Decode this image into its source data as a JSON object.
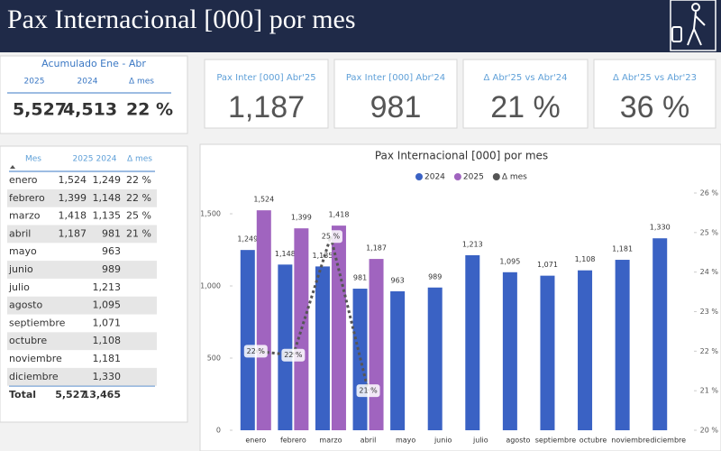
{
  "header": {
    "title": "Pax Internacional [000] por mes"
  },
  "summary": {
    "title": "Acumulado Ene - Abr",
    "columns": [
      "2025",
      "2024",
      "Δ mes"
    ],
    "values": [
      "5,527",
      "4,513",
      "22 %"
    ]
  },
  "kpis": [
    {
      "label": "Pax Inter [000] Abr'25",
      "value": "1,187"
    },
    {
      "label": "Pax Inter [000] Abr'24",
      "value": "981"
    },
    {
      "label": "Δ Abr'25 vs Abr'24",
      "value": "21 %"
    },
    {
      "label": "Δ Abr'25 vs Abr'23",
      "value": "36 %"
    }
  ],
  "table": {
    "columns": [
      "Mes",
      "2025",
      "2024",
      "Δ mes"
    ],
    "rows": [
      [
        "enero",
        "1,524",
        "1,249",
        "22 %"
      ],
      [
        "febrero",
        "1,399",
        "1,148",
        "22 %"
      ],
      [
        "marzo",
        "1,418",
        "1,135",
        "25 %"
      ],
      [
        "abril",
        "1,187",
        "981",
        "21 %"
      ],
      [
        "mayo",
        null,
        "963",
        null
      ],
      [
        "junio",
        null,
        "989",
        null
      ],
      [
        "julio",
        null,
        "1,213",
        null
      ],
      [
        "agosto",
        null,
        "1,095",
        null
      ],
      [
        "septiembre",
        null,
        "1,071",
        null
      ],
      [
        "octubre",
        null,
        "1,108",
        null
      ],
      [
        "noviembre",
        null,
        "1,181",
        null
      ],
      [
        "diciembre",
        null,
        "1,330",
        null
      ]
    ],
    "total": [
      "Total",
      "5,527",
      "13,465",
      null
    ]
  },
  "chart_data": {
    "type": "bar",
    "title": "Pax Internacional [000] por mes",
    "categories": [
      "enero",
      "febrero",
      "marzo",
      "abril",
      "mayo",
      "junio",
      "julio",
      "agosto",
      "septiembre",
      "octubre",
      "noviembre",
      "diciembre"
    ],
    "series": [
      {
        "name": "2024",
        "color": "#3a62c4",
        "values": [
          1249,
          1148,
          1135,
          981,
          963,
          989,
          1213,
          1095,
          1071,
          1108,
          1181,
          1330
        ],
        "value_labels": [
          "1,249",
          "1,148",
          "1,135",
          "981",
          "963",
          "989",
          "1,213",
          "1,095",
          "1,071",
          "1,108",
          "1,181",
          "1,330"
        ]
      },
      {
        "name": "2025",
        "color": "#a064bf",
        "values": [
          1524,
          1399,
          1418,
          1187,
          null,
          null,
          null,
          null,
          null,
          null,
          null,
          null
        ],
        "value_labels": [
          "1,524",
          "1,399",
          "1,418",
          "1,187",
          null,
          null,
          null,
          null,
          null,
          null,
          null,
          null
        ]
      },
      {
        "name": "Δ mes",
        "color": "#555555",
        "type": "line",
        "axis": "y2",
        "values": [
          22.0,
          21.9,
          24.9,
          21.0,
          null,
          null,
          null,
          null,
          null,
          null,
          null,
          null
        ],
        "value_labels": [
          "22 %",
          "22 %",
          "25 %",
          "21 %",
          null,
          null,
          null,
          null,
          null,
          null,
          null,
          null
        ]
      }
    ],
    "ylim": [
      0,
      1600
    ],
    "yticks": [
      0,
      500,
      {
        "value": 1000,
        "label": "1,000"
      },
      {
        "value": 1500,
        "label": "1,500"
      }
    ],
    "y2lim": [
      20,
      26
    ],
    "y2ticks": [
      {
        "value": 20,
        "label": "20 %"
      },
      {
        "value": 21,
        "label": "21 %"
      },
      {
        "value": 22,
        "label": "22 %"
      },
      {
        "value": 23,
        "label": "23 %"
      },
      {
        "value": 24,
        "label": "24 %"
      },
      {
        "value": 25,
        "label": "25 %"
      },
      {
        "value": 26,
        "label": "26 %"
      }
    ],
    "legend": "top"
  }
}
